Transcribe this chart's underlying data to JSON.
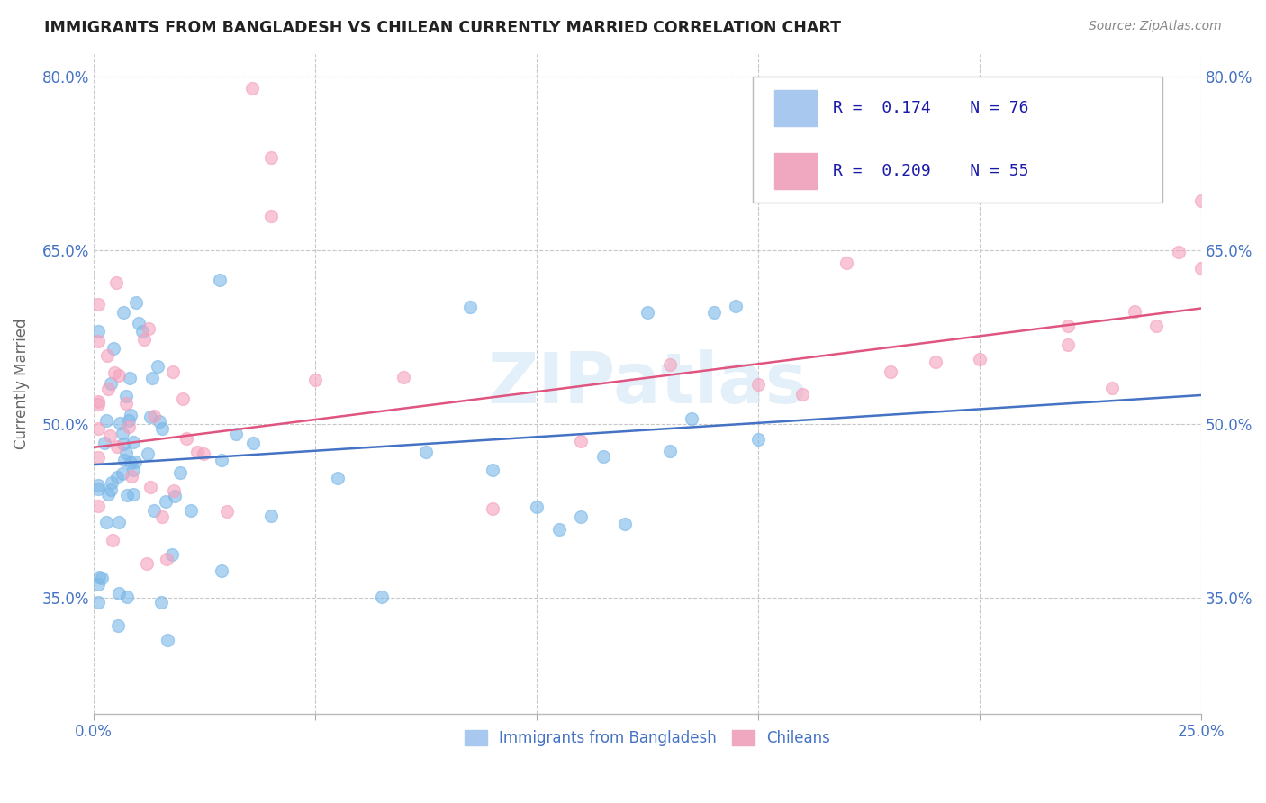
{
  "title": "IMMIGRANTS FROM BANGLADESH VS CHILEAN CURRENTLY MARRIED CORRELATION CHART",
  "source": "Source: ZipAtlas.com",
  "ylabel": "Currently Married",
  "xlim": [
    0.0,
    0.25
  ],
  "ylim": [
    0.25,
    0.82
  ],
  "y_ticks": [
    0.35,
    0.5,
    0.65,
    0.8
  ],
  "y_tick_labels": [
    "35.0%",
    "50.0%",
    "65.0%",
    "80.0%"
  ],
  "series1_color": "#7bb8e8",
  "series2_color": "#f4a0bc",
  "trendline1_color": "#4472c4",
  "trendline2_color": "#e05580",
  "legend_box_color": "#a8c8f0",
  "legend_box_color2": "#f0a8c0",
  "bg_color": "#ffffff",
  "grid_color": "#c8c8c8",
  "watermark": "ZIPatlas",
  "tick_color": "#4472c4"
}
